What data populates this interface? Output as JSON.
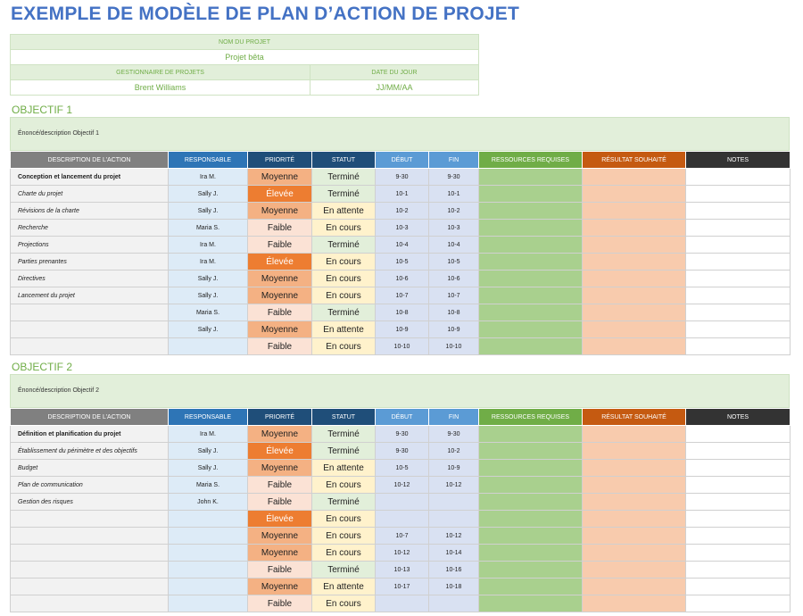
{
  "title": "EXEMPLE DE MODÈLE DE PLAN D’ACTION DE PROJET",
  "project": {
    "name_label": "NOM DU PROJET",
    "name_value": "Projet bêta",
    "manager_label": "GESTIONNAIRE DE PROJETS",
    "manager_value": "Brent Williams",
    "date_label": "DATE DU JOUR",
    "date_value": "JJ/MM/AA"
  },
  "headers": [
    "DESCRIPTION DE L’ACTION",
    "RESPONSABLE",
    "PRIORITÉ",
    "STATUT",
    "DÉBUT",
    "FIN",
    "RESSOURCES REQUISES",
    "RÉSULTAT SOUHAITÉ",
    "NOTES"
  ],
  "objectives": [
    {
      "title": "OBJECTIF 1",
      "description": "Énoncé/description Objectif 1",
      "rows": [
        {
          "desc": "Conception et lancement du projet",
          "style": "bold",
          "resp": "Ira M.",
          "prio": "Moyenne",
          "stat": "Terminé",
          "debut": "9-30",
          "fin": "9-30"
        },
        {
          "desc": "Charte du projet",
          "style": "ital",
          "resp": "Sally J.",
          "prio": "Élevée",
          "stat": "Terminé",
          "debut": "10-1",
          "fin": "10-1"
        },
        {
          "desc": "Révisions de la charte",
          "style": "ital",
          "resp": "Sally J.",
          "prio": "Moyenne",
          "stat": "En attente",
          "debut": "10-2",
          "fin": "10-2"
        },
        {
          "desc": "Recherche",
          "style": "ital",
          "resp": "Maria S.",
          "prio": "Faible",
          "stat": "En cours",
          "debut": "10-3",
          "fin": "10-3"
        },
        {
          "desc": "Projections",
          "style": "ital",
          "resp": "Ira M.",
          "prio": "Faible",
          "stat": "Terminé",
          "debut": "10-4",
          "fin": "10-4"
        },
        {
          "desc": "Parties prenantes",
          "style": "ital",
          "resp": "Ira M.",
          "prio": "Élevée",
          "stat": "En cours",
          "debut": "10-5",
          "fin": "10-5"
        },
        {
          "desc": "Directives",
          "style": "ital",
          "resp": "Sally J.",
          "prio": "Moyenne",
          "stat": "En cours",
          "debut": "10-6",
          "fin": "10-6"
        },
        {
          "desc": "Lancement du projet",
          "style": "ital",
          "resp": "Sally J.",
          "prio": "Moyenne",
          "stat": "En cours",
          "debut": "10-7",
          "fin": "10-7"
        },
        {
          "desc": "",
          "style": "ital",
          "resp": "Maria S.",
          "prio": "Faible",
          "stat": "Terminé",
          "debut": "10-8",
          "fin": "10-8"
        },
        {
          "desc": "",
          "style": "ital",
          "resp": "Sally J.",
          "prio": "Moyenne",
          "stat": "En attente",
          "debut": "10-9",
          "fin": "10-9"
        },
        {
          "desc": "",
          "style": "ital",
          "resp": "",
          "prio": "Faible",
          "stat": "En cours",
          "debut": "10-10",
          "fin": "10-10"
        }
      ]
    },
    {
      "title": "OBJECTIF 2",
      "description": "Énoncé/description Objectif 2",
      "rows": [
        {
          "desc": "Définition et planification du projet",
          "style": "bold",
          "resp": "Ira M.",
          "prio": "Moyenne",
          "stat": "Terminé",
          "debut": "9-30",
          "fin": "9-30"
        },
        {
          "desc": "Établissement du périmètre et des objectifs",
          "style": "ital",
          "resp": "Sally J.",
          "prio": "Élevée",
          "stat": "Terminé",
          "debut": "9-30",
          "fin": "10-2"
        },
        {
          "desc": "Budget",
          "style": "ital",
          "resp": "Sally J.",
          "prio": "Moyenne",
          "stat": "En attente",
          "debut": "10-5",
          "fin": "10-9"
        },
        {
          "desc": "Plan de communication",
          "style": "ital",
          "resp": "Maria S.",
          "prio": "Faible",
          "stat": "En cours",
          "debut": "10-12",
          "fin": "10-12"
        },
        {
          "desc": "Gestion des risques",
          "style": "ital",
          "resp": "John K.",
          "prio": "Faible",
          "stat": "Terminé",
          "debut": "",
          "fin": ""
        },
        {
          "desc": "",
          "style": "ital",
          "resp": "",
          "prio": "Élevée",
          "stat": "En cours",
          "debut": "",
          "fin": ""
        },
        {
          "desc": "",
          "style": "ital",
          "resp": "",
          "prio": "Moyenne",
          "stat": "En cours",
          "debut": "10-7",
          "fin": "10-12"
        },
        {
          "desc": "",
          "style": "ital",
          "resp": "",
          "prio": "Moyenne",
          "stat": "En cours",
          "debut": "10-12",
          "fin": "10-14"
        },
        {
          "desc": "",
          "style": "ital",
          "resp": "",
          "prio": "Faible",
          "stat": "Terminé",
          "debut": "10-13",
          "fin": "10-16"
        },
        {
          "desc": "",
          "style": "ital",
          "resp": "",
          "prio": "Moyenne",
          "stat": "En attente",
          "debut": "10-17",
          "fin": "10-18"
        },
        {
          "desc": "",
          "style": "ital",
          "resp": "",
          "prio": "Faible",
          "stat": "En cours",
          "debut": "",
          "fin": ""
        }
      ]
    }
  ]
}
